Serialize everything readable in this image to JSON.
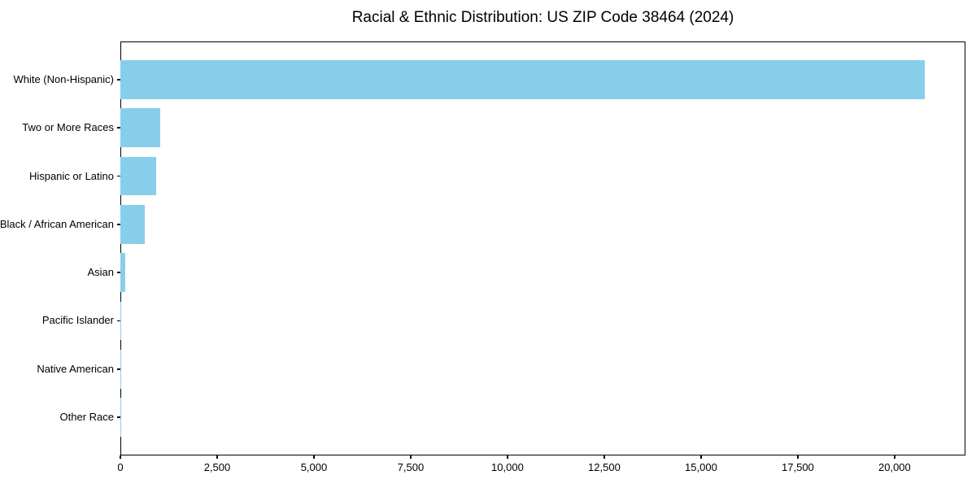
{
  "title": "Racial & Ethnic Distribution: US ZIP Code 38464 (2024)",
  "chart_data": {
    "type": "bar",
    "orientation": "horizontal",
    "title": "Racial & Ethnic Distribution: US ZIP Code 38464 (2024)",
    "xlabel": "",
    "ylabel": "",
    "categories": [
      "White (Non-Hispanic)",
      "Two or More Races",
      "Hispanic or Latino",
      "Black / African American",
      "Asian",
      "Pacific Islander",
      "Native American",
      "Other Race"
    ],
    "values": [
      20780,
      1020,
      915,
      640,
      120,
      25,
      10,
      5
    ],
    "bar_color": "#87CEEB",
    "xlim": [
      0,
      21830
    ],
    "x_ticks": [
      0,
      2500,
      5000,
      7500,
      10000,
      12500,
      15000,
      17500,
      20000
    ],
    "x_tick_labels": [
      "0",
      "2,500",
      "5,000",
      "7,500",
      "10,000",
      "12,500",
      "15,000",
      "17,500",
      "20,000"
    ],
    "grid": false,
    "legend": "none",
    "bar_height_fraction": 0.8,
    "order": "descending, largest at top"
  }
}
